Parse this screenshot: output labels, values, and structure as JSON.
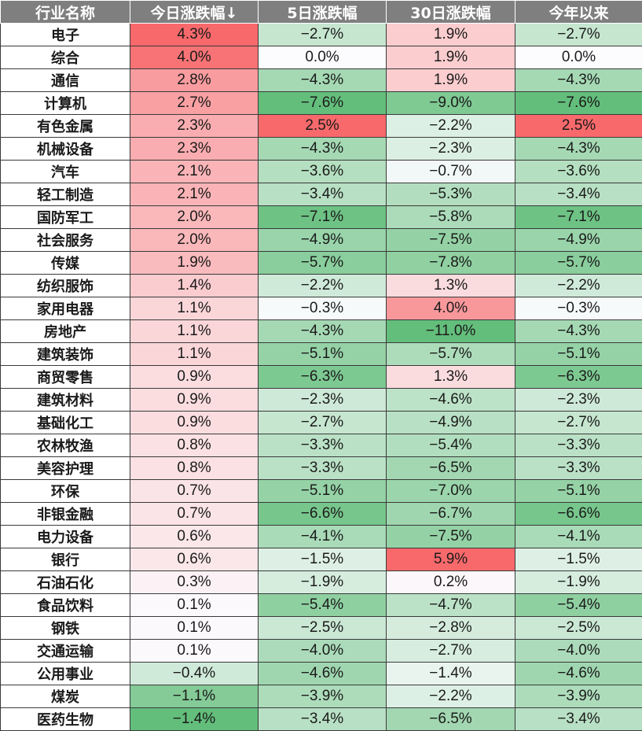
{
  "colors": {
    "header_bg": "#7f7f7f",
    "positive_max": "#f8696b",
    "negative_max": "#63be7b",
    "neutral": "#fcfcff"
  },
  "header": {
    "col_name": "行业名称",
    "col_today": "今日涨跌幅↓",
    "col_5d": "5日涨跌幅",
    "col_30d": "30日涨跌幅",
    "col_ytd": "今年以来"
  },
  "chart_data": {
    "type": "table",
    "columns": [
      "行业名称",
      "今日涨跌幅↓",
      "5日涨跌幅",
      "30日涨跌幅",
      "今年以来"
    ],
    "rows": [
      {
        "name": "电子",
        "today": "4.3%",
        "d5": "−2.7%",
        "d30": "1.9%",
        "ytd": "−2.7%"
      },
      {
        "name": "综合",
        "today": "4.0%",
        "d5": "0.0%",
        "d30": "1.9%",
        "ytd": "0.0%"
      },
      {
        "name": "通信",
        "today": "2.8%",
        "d5": "−4.3%",
        "d30": "1.9%",
        "ytd": "−4.3%"
      },
      {
        "name": "计算机",
        "today": "2.7%",
        "d5": "−7.6%",
        "d30": "−9.0%",
        "ytd": "−7.6%"
      },
      {
        "name": "有色金属",
        "today": "2.3%",
        "d5": "2.5%",
        "d30": "−2.2%",
        "ytd": "2.5%"
      },
      {
        "name": "机械设备",
        "today": "2.3%",
        "d5": "−4.3%",
        "d30": "−2.3%",
        "ytd": "−4.3%"
      },
      {
        "name": "汽车",
        "today": "2.1%",
        "d5": "−3.6%",
        "d30": "−0.7%",
        "ytd": "−3.6%"
      },
      {
        "name": "轻工制造",
        "today": "2.1%",
        "d5": "−3.4%",
        "d30": "−5.3%",
        "ytd": "−3.4%"
      },
      {
        "name": "国防军工",
        "today": "2.0%",
        "d5": "−7.1%",
        "d30": "−5.8%",
        "ytd": "−7.1%"
      },
      {
        "name": "社会服务",
        "today": "2.0%",
        "d5": "−4.9%",
        "d30": "−7.5%",
        "ytd": "−4.9%"
      },
      {
        "name": "传媒",
        "today": "1.9%",
        "d5": "−5.7%",
        "d30": "−7.8%",
        "ytd": "−5.7%"
      },
      {
        "name": "纺织服饰",
        "today": "1.4%",
        "d5": "−2.2%",
        "d30": "1.3%",
        "ytd": "−2.2%"
      },
      {
        "name": "家用电器",
        "today": "1.1%",
        "d5": "−0.3%",
        "d30": "4.0%",
        "ytd": "−0.3%"
      },
      {
        "name": "房地产",
        "today": "1.1%",
        "d5": "−4.3%",
        "d30": "−11.0%",
        "ytd": "−4.3%"
      },
      {
        "name": "建筑装饰",
        "today": "1.1%",
        "d5": "−5.1%",
        "d30": "−5.7%",
        "ytd": "−5.1%"
      },
      {
        "name": "商贸零售",
        "today": "0.9%",
        "d5": "−6.3%",
        "d30": "1.3%",
        "ytd": "−6.3%"
      },
      {
        "name": "建筑材料",
        "today": "0.9%",
        "d5": "−2.3%",
        "d30": "−4.6%",
        "ytd": "−2.3%"
      },
      {
        "name": "基础化工",
        "today": "0.9%",
        "d5": "−2.7%",
        "d30": "−4.9%",
        "ytd": "−2.7%"
      },
      {
        "name": "农林牧渔",
        "today": "0.8%",
        "d5": "−3.3%",
        "d30": "−5.4%",
        "ytd": "−3.3%"
      },
      {
        "name": "美容护理",
        "today": "0.8%",
        "d5": "−3.3%",
        "d30": "−6.5%",
        "ytd": "−3.3%"
      },
      {
        "name": "环保",
        "today": "0.7%",
        "d5": "−5.1%",
        "d30": "−7.0%",
        "ytd": "−5.1%"
      },
      {
        "name": "非银金融",
        "today": "0.7%",
        "d5": "−6.6%",
        "d30": "−6.7%",
        "ytd": "−6.6%"
      },
      {
        "name": "电力设备",
        "today": "0.6%",
        "d5": "−4.1%",
        "d30": "−7.5%",
        "ytd": "−4.1%"
      },
      {
        "name": "银行",
        "today": "0.6%",
        "d5": "−1.5%",
        "d30": "5.9%",
        "ytd": "−1.5%"
      },
      {
        "name": "石油石化",
        "today": "0.3%",
        "d5": "−1.9%",
        "d30": "0.2%",
        "ytd": "−1.9%"
      },
      {
        "name": "食品饮料",
        "today": "0.1%",
        "d5": "−5.4%",
        "d30": "−4.7%",
        "ytd": "−5.4%"
      },
      {
        "name": "钢铁",
        "today": "0.1%",
        "d5": "−2.5%",
        "d30": "−2.8%",
        "ytd": "−2.5%"
      },
      {
        "name": "交通运输",
        "today": "0.1%",
        "d5": "−4.0%",
        "d30": "−2.7%",
        "ytd": "−4.0%"
      },
      {
        "name": "公用事业",
        "today": "−0.4%",
        "d5": "−4.6%",
        "d30": "−1.4%",
        "ytd": "−4.6%"
      },
      {
        "name": "煤炭",
        "today": "−1.1%",
        "d5": "−3.9%",
        "d30": "−2.2%",
        "ytd": "−3.9%"
      },
      {
        "name": "医药生物",
        "today": "−1.4%",
        "d5": "−3.4%",
        "d30": "−6.5%",
        "ytd": "−3.4%"
      }
    ]
  }
}
